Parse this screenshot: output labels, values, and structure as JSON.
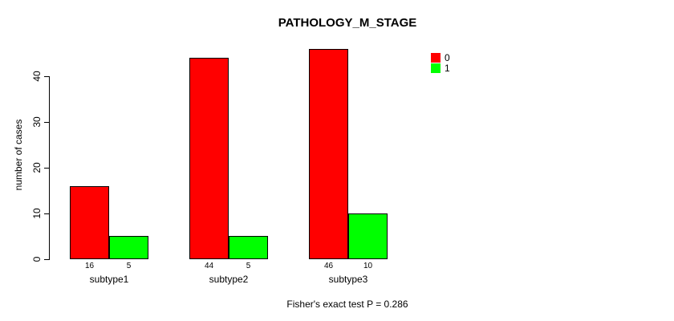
{
  "chart_data": {
    "type": "bar",
    "title": "PATHOLOGY_M_STAGE",
    "xlabel": "",
    "ylabel": "number of cases",
    "categories": [
      "subtype1",
      "subtype2",
      "subtype3"
    ],
    "series": [
      {
        "name": "0",
        "color": "#ff0000",
        "values": [
          16,
          44,
          46
        ]
      },
      {
        "name": "1",
        "color": "#00ff00",
        "values": [
          5,
          5,
          10
        ]
      }
    ],
    "bar_value_labels": [
      [
        "16",
        "5"
      ],
      [
        "44",
        "5"
      ],
      [
        "46",
        "10"
      ]
    ],
    "yticks": [
      "0",
      "10",
      "20",
      "30",
      "40"
    ],
    "ylim": [
      0,
      46
    ],
    "grid": false,
    "legend": {
      "position": "top-right",
      "entries": [
        {
          "label": "0",
          "color": "#ff0000"
        },
        {
          "label": "1",
          "color": "#00ff00"
        }
      ]
    },
    "annotation": "Fisher's exact test P = 0.286",
    "bar_border_color": "#000000",
    "axis_color": "#000000"
  }
}
